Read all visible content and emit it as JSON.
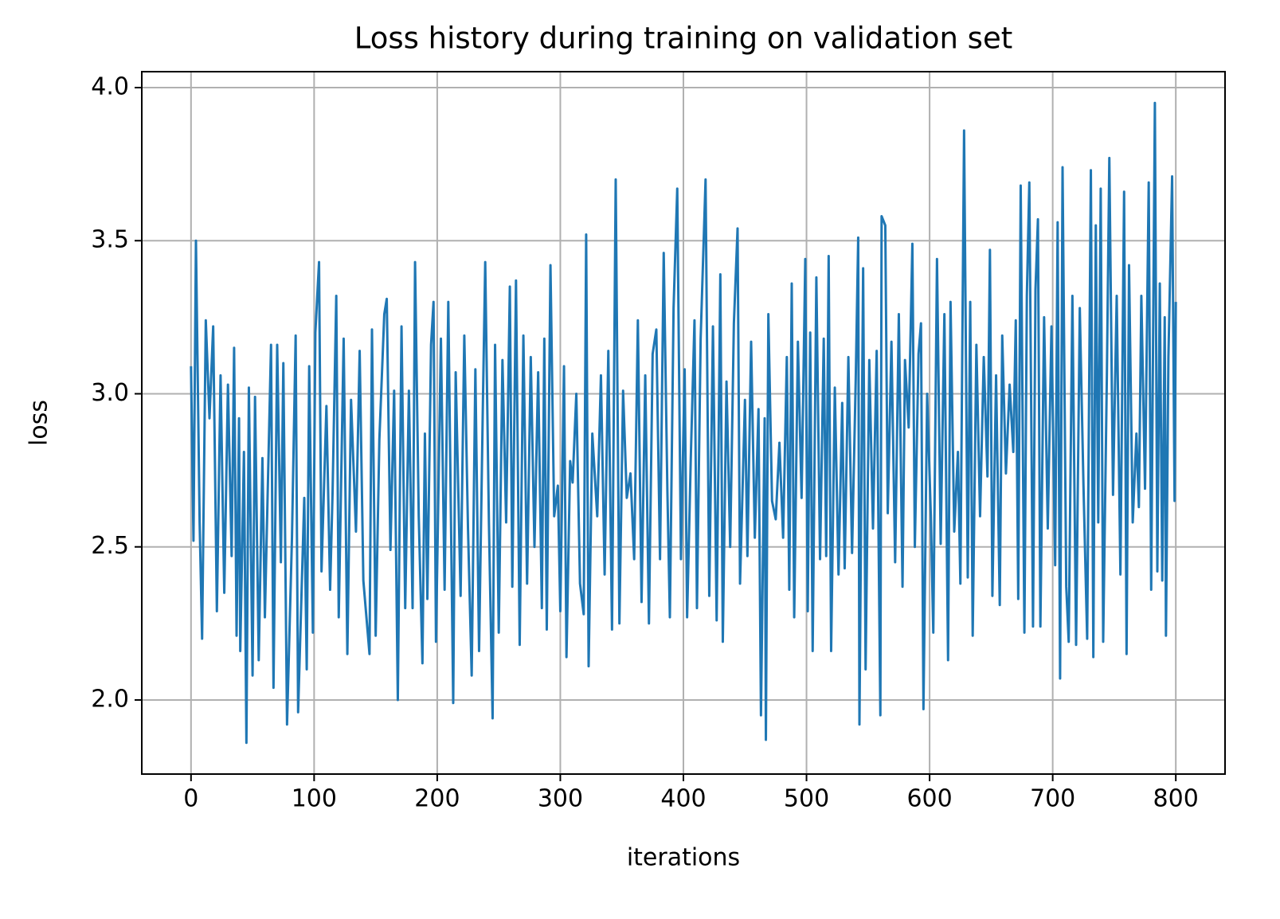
{
  "chart_data": {
    "type": "line",
    "title": "Loss history during training on validation set",
    "xlabel": "iterations",
    "ylabel": "loss",
    "color": "#1f77b4",
    "grid": true,
    "xlim": [
      -40,
      840
    ],
    "xticks": [
      0,
      100,
      200,
      300,
      400,
      500,
      600,
      700,
      800
    ],
    "ylim": [
      1.758,
      4.052
    ],
    "yticks": [
      {
        "value": 2,
        "label": "2.0"
      },
      2.5,
      {
        "value": 3,
        "label": "3.0"
      },
      3.5,
      {
        "value": 4,
        "label": "4.0"
      }
    ],
    "x": [
      0,
      2,
      4,
      7,
      9,
      12,
      15,
      18,
      21,
      24,
      27,
      30,
      33,
      35,
      37,
      39,
      40,
      43,
      45,
      47,
      50,
      52,
      55,
      58,
      60,
      65,
      67,
      70,
      73,
      75,
      78,
      82,
      85,
      87,
      92,
      94,
      96,
      99,
      101,
      104,
      106,
      110,
      113,
      115,
      118,
      120,
      124,
      127,
      130,
      134,
      137,
      140,
      145,
      147,
      150,
      153,
      157,
      159,
      162,
      165,
      168,
      171,
      174,
      177,
      180,
      182,
      185,
      188,
      190,
      192,
      195,
      197,
      199,
      203,
      206,
      209,
      213,
      215,
      219,
      222,
      225,
      228,
      231,
      234,
      237,
      239,
      242,
      245,
      247,
      250,
      253,
      256,
      259,
      261,
      264,
      267,
      270,
      273,
      276,
      279,
      282,
      285,
      287,
      289,
      292,
      295,
      298,
      300,
      303,
      305,
      308,
      310,
      313,
      316,
      319,
      321,
      323,
      326,
      330,
      333,
      336,
      339,
      342,
      345,
      348,
      351,
      354,
      357,
      360,
      363,
      366,
      369,
      372,
      375,
      378,
      381,
      384,
      387,
      389,
      392,
      395,
      398,
      401,
      403,
      406,
      409,
      411,
      414,
      418,
      421,
      424,
      427,
      430,
      432,
      435,
      438,
      441,
      444,
      446,
      450,
      452,
      455,
      458,
      461,
      463,
      466,
      467,
      469,
      472,
      475,
      478,
      481,
      484,
      486,
      488,
      490,
      493,
      496,
      499,
      501,
      503,
      505,
      508,
      511,
      514,
      516,
      518,
      520,
      523,
      526,
      529,
      531,
      534,
      537,
      540,
      542,
      543,
      546,
      548,
      551,
      554,
      557,
      560,
      561,
      564,
      566,
      569,
      572,
      575,
      578,
      580,
      583,
      586,
      588,
      591,
      593,
      595,
      598,
      601,
      603,
      606,
      609,
      612,
      615,
      617,
      620,
      623,
      625,
      628,
      631,
      633,
      635,
      638,
      641,
      644,
      647,
      649,
      651,
      654,
      657,
      659,
      662,
      665,
      668,
      670,
      672,
      674,
      677,
      679,
      681,
      684,
      686,
      688,
      690,
      693,
      696,
      699,
      702,
      704,
      706,
      708,
      711,
      713,
      716,
      719,
      722,
      725,
      728,
      731,
      733,
      735,
      737,
      739,
      741,
      744,
      746,
      749,
      752,
      755,
      758,
      760,
      762,
      765,
      768,
      770,
      772,
      775,
      778,
      780,
      783,
      785,
      787,
      789,
      791,
      792,
      794,
      797,
      799,
      800
    ],
    "values": [
      3.09,
      2.52,
      3.5,
      2.58,
      2.2,
      3.24,
      2.92,
      3.22,
      2.29,
      3.06,
      2.35,
      3.03,
      2.47,
      3.15,
      2.21,
      2.92,
      2.16,
      2.81,
      1.86,
      3.02,
      2.08,
      2.99,
      2.13,
      2.79,
      2.27,
      3.16,
      2.04,
      3.16,
      2.45,
      3.1,
      1.92,
      2.53,
      3.19,
      1.96,
      2.66,
      2.1,
      3.09,
      2.22,
      3.2,
      3.43,
      2.42,
      2.96,
      2.36,
      2.68,
      3.32,
      2.27,
      3.18,
      2.15,
      2.98,
      2.55,
      3.14,
      2.39,
      2.15,
      3.21,
      2.21,
      2.85,
      3.26,
      3.31,
      2.49,
      3.01,
      2.0,
      3.22,
      2.3,
      3.01,
      2.3,
      3.43,
      2.6,
      2.12,
      2.87,
      2.33,
      3.16,
      3.3,
      2.19,
      3.18,
      2.36,
      3.3,
      1.99,
      3.07,
      2.34,
      3.19,
      2.56,
      2.08,
      3.08,
      2.16,
      2.94,
      3.43,
      2.58,
      1.94,
      3.16,
      2.22,
      3.11,
      2.58,
      3.35,
      2.37,
      3.37,
      2.18,
      3.19,
      2.38,
      3.12,
      2.5,
      3.07,
      2.3,
      3.18,
      2.23,
      3.42,
      2.6,
      2.7,
      2.29,
      3.09,
      2.14,
      2.78,
      2.71,
      3.0,
      2.38,
      2.28,
      3.52,
      2.11,
      2.87,
      2.6,
      3.06,
      2.41,
      3.14,
      2.23,
      3.7,
      2.25,
      3.01,
      2.66,
      2.74,
      2.46,
      3.24,
      2.32,
      3.06,
      2.25,
      3.13,
      3.21,
      2.46,
      3.46,
      2.68,
      2.27,
      3.28,
      3.67,
      2.46,
      3.08,
      2.27,
      2.79,
      3.24,
      2.3,
      3.18,
      3.7,
      2.34,
      3.22,
      2.26,
      3.39,
      2.19,
      3.04,
      2.5,
      3.23,
      3.54,
      2.38,
      2.98,
      2.47,
      3.17,
      2.53,
      2.95,
      1.95,
      2.92,
      1.87,
      3.26,
      2.65,
      2.59,
      2.84,
      2.53,
      3.12,
      2.36,
      3.36,
      2.27,
      3.17,
      2.66,
      3.44,
      2.29,
      3.2,
      2.16,
      3.38,
      2.46,
      3.18,
      2.47,
      3.45,
      2.16,
      3.02,
      2.41,
      2.97,
      2.43,
      3.12,
      2.48,
      3.05,
      3.51,
      1.92,
      3.41,
      2.1,
      3.11,
      2.56,
      3.14,
      1.95,
      3.58,
      3.55,
      2.61,
      3.17,
      2.45,
      3.26,
      2.37,
      3.11,
      2.89,
      3.49,
      2.5,
      3.13,
      3.23,
      1.97,
      3.0,
      2.6,
      2.22,
      3.44,
      2.51,
      3.26,
      2.13,
      3.3,
      2.55,
      2.81,
      2.38,
      3.86,
      2.4,
      3.3,
      2.21,
      3.16,
      2.6,
      3.12,
      2.73,
      3.47,
      2.34,
      3.06,
      2.31,
      3.19,
      2.74,
      3.03,
      2.81,
      3.24,
      2.33,
      3.68,
      2.22,
      3.32,
      3.69,
      2.24,
      3.34,
      3.57,
      2.24,
      3.25,
      2.56,
      3.22,
      2.44,
      3.56,
      2.07,
      3.74,
      2.37,
      2.19,
      3.32,
      2.18,
      3.28,
      2.7,
      2.2,
      3.73,
      2.14,
      3.55,
      2.58,
      3.67,
      2.19,
      3.06,
      3.77,
      2.67,
      3.32,
      2.41,
      3.66,
      2.15,
      3.42,
      2.58,
      2.87,
      2.63,
      3.32,
      2.69,
      3.69,
      2.36,
      3.95,
      2.42,
      3.36,
      2.39,
      3.25,
      2.21,
      3.12,
      3.71,
      2.65,
      3.3
    ]
  }
}
